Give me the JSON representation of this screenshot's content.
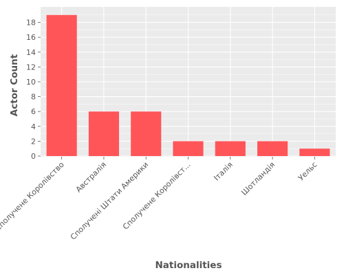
{
  "chart_data": {
    "type": "bar",
    "categories": [
      "Сполучене Королівство",
      "Австралія",
      "Сполучені Штати Америки",
      "Сполучене Королівст...",
      "Італія",
      "Шотландія",
      "Уельс"
    ],
    "values": [
      19,
      6,
      6,
      2,
      2,
      2,
      1
    ],
    "title": "",
    "xlabel": "Nationalities",
    "ylabel": "Actor Count",
    "ylim": [
      0,
      20
    ],
    "yticks": [
      0,
      2,
      4,
      6,
      8,
      10,
      12,
      14,
      16,
      18
    ],
    "grid": true,
    "colors": {
      "bar": "#ff5559",
      "panel_background": "#ebebeb",
      "grid": "#ffffff",
      "text": "#555555"
    }
  }
}
